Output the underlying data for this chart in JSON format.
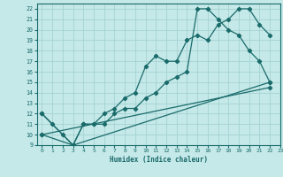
{
  "xlabel": "Humidex (Indice chaleur)",
  "xlim": [
    -0.5,
    23
  ],
  "ylim": [
    9,
    22.5
  ],
  "xticks": [
    0,
    1,
    2,
    3,
    4,
    5,
    6,
    7,
    8,
    9,
    10,
    11,
    12,
    13,
    14,
    15,
    16,
    17,
    18,
    19,
    20,
    21,
    22,
    23
  ],
  "yticks": [
    9,
    10,
    11,
    12,
    13,
    14,
    15,
    16,
    17,
    18,
    19,
    20,
    21,
    22
  ],
  "bg_color": "#c5e8e8",
  "line_color": "#1a6b6b",
  "grid_color": "#9fcfcf",
  "line1_x": [
    0,
    1,
    2,
    3,
    4,
    5,
    6,
    7,
    8,
    9,
    10,
    11,
    12,
    13,
    14,
    15,
    16,
    17,
    18,
    19,
    20,
    21,
    22
  ],
  "line1_y": [
    12,
    11,
    10,
    9,
    11,
    11,
    12,
    12.5,
    13.5,
    14,
    16.5,
    17.5,
    17,
    17,
    19,
    19.5,
    19,
    20.5,
    21,
    22,
    22,
    20.5,
    19.5
  ],
  "line2_x": [
    0,
    3,
    4,
    5,
    6,
    7,
    8,
    9,
    10,
    11,
    12,
    13,
    14,
    15,
    16,
    17,
    18,
    19,
    20,
    21,
    22
  ],
  "line2_y": [
    12,
    9,
    11,
    11,
    11,
    12,
    12.5,
    12.5,
    13.5,
    14,
    15,
    15.5,
    16,
    22,
    22,
    21,
    20,
    19.5,
    18,
    17,
    15
  ],
  "line3_x": [
    0,
    3,
    22
  ],
  "line3_y": [
    10,
    9,
    15
  ],
  "line4_x": [
    0,
    22
  ],
  "line4_y": [
    10,
    14.5
  ]
}
